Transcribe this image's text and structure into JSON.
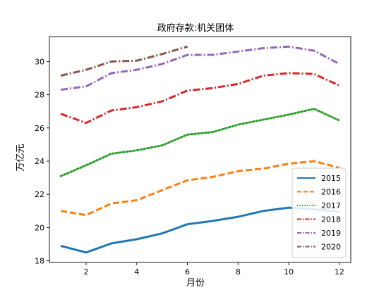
{
  "chart_data": {
    "type": "line",
    "title": "政府存款:机关团体",
    "xlabel": "月份",
    "ylabel": "万亿元",
    "xlim": [
      0.55,
      12.45
    ],
    "ylim": [
      17.9,
      31.5
    ],
    "xticks": [
      2,
      4,
      6,
      8,
      10,
      12
    ],
    "yticks": [
      18,
      20,
      22,
      24,
      26,
      28,
      30
    ],
    "grid": false,
    "legend_position": "lower right",
    "series": [
      {
        "name": "2015",
        "color": "#1f77b4",
        "style": "solid",
        "x": [
          1,
          2,
          3,
          4,
          5,
          6,
          7,
          8,
          9,
          10,
          11,
          12
        ],
        "y": [
          18.9,
          18.5,
          19.05,
          19.3,
          19.65,
          20.2,
          20.4,
          20.65,
          21.0,
          21.2,
          21.1,
          20.95
        ]
      },
      {
        "name": "2016",
        "color": "#ff7f0e",
        "style": "dashed",
        "x": [
          1,
          2,
          3,
          4,
          5,
          6,
          7,
          8,
          9,
          10,
          11,
          12
        ],
        "y": [
          21.0,
          20.75,
          21.45,
          21.65,
          22.25,
          22.85,
          23.05,
          23.4,
          23.55,
          23.85,
          24.0,
          23.6
        ]
      },
      {
        "name": "2017",
        "color": "#2ca02c",
        "style": "dotted",
        "x": [
          1,
          2,
          3,
          4,
          5,
          6,
          7,
          8,
          9,
          10,
          11,
          12
        ],
        "y": [
          23.1,
          23.75,
          24.45,
          24.65,
          24.95,
          25.6,
          25.75,
          26.2,
          26.5,
          26.8,
          27.15,
          26.45
        ]
      },
      {
        "name": "2018",
        "color": "#d62728",
        "style": "dashdot",
        "x": [
          1,
          2,
          3,
          4,
          5,
          6,
          7,
          8,
          9,
          10,
          11,
          12
        ],
        "y": [
          26.85,
          26.3,
          27.05,
          27.25,
          27.6,
          28.25,
          28.4,
          28.65,
          29.15,
          29.3,
          29.25,
          28.55
        ]
      },
      {
        "name": "2019",
        "color": "#9467bd",
        "style": "dashdot",
        "x": [
          1,
          2,
          3,
          4,
          5,
          6,
          7,
          8,
          9,
          10,
          11,
          12
        ],
        "y": [
          28.3,
          28.5,
          29.3,
          29.5,
          29.85,
          30.4,
          30.4,
          30.6,
          30.8,
          30.9,
          30.65,
          29.85
        ]
      },
      {
        "name": "2020",
        "color": "#8c564b",
        "style": "dashdot",
        "x": [
          1,
          2,
          3,
          4,
          5,
          6
        ],
        "y": [
          29.15,
          29.5,
          30.0,
          30.05,
          30.45,
          30.9
        ]
      }
    ]
  }
}
